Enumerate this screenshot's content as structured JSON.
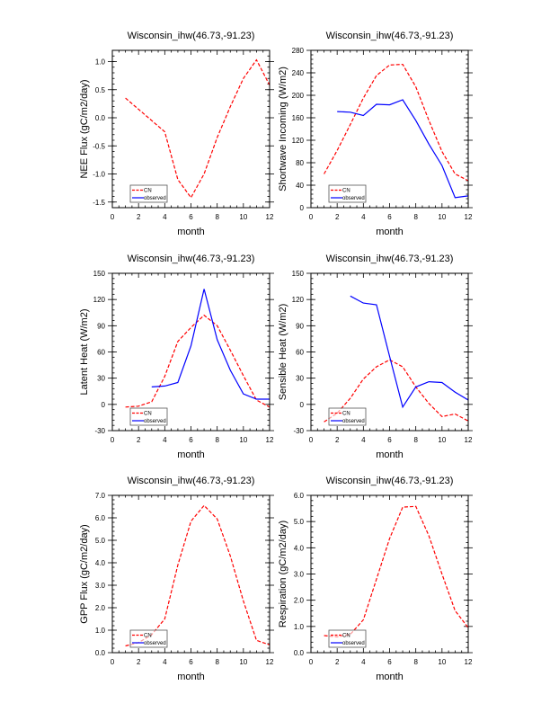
{
  "colors": {
    "model": "#ff0000",
    "observed": "#0000ff",
    "frame": "#000000"
  },
  "chart_data": [
    {
      "type": "line",
      "title": "Wisconsin_ihw(46.73,-91.23)",
      "xlabel": "month",
      "ylabel": "NEE Flux (gC/m2/day)",
      "xlim": [
        0,
        12
      ],
      "ylim": [
        -1.6,
        1.2
      ],
      "xticks": [
        "0",
        "2",
        "4",
        "6",
        "8",
        "10",
        "12"
      ],
      "yticks": [
        {
          "v": -1.5,
          "label": "-1.5"
        },
        {
          "v": -1.0,
          "label": "-1.0"
        },
        {
          "v": -0.5,
          "label": "-0.5"
        },
        {
          "v": 0.0,
          "label": "0.0"
        },
        {
          "v": 0.5,
          "label": "0.5"
        },
        {
          "v": 1.0,
          "label": "1.0"
        }
      ],
      "legend": {
        "position": "bottom-left",
        "entries": [
          "CN",
          "observed"
        ]
      },
      "series": [
        {
          "name": "CN",
          "x": [
            1,
            2,
            3,
            4,
            5,
            6,
            7,
            8,
            9,
            10,
            11,
            12
          ],
          "values": [
            0.35,
            0.15,
            -0.05,
            -0.25,
            -1.1,
            -1.42,
            -1.0,
            -0.35,
            0.2,
            0.7,
            1.03,
            0.58
          ]
        },
        {
          "name": "observed",
          "x": [],
          "values": []
        }
      ]
    },
    {
      "type": "line",
      "title": "Wisconsin_ihw(46.73,-91.23)",
      "xlabel": "month",
      "ylabel": "Shortwave Incoming (W/m2)",
      "xlim": [
        0,
        12
      ],
      "ylim": [
        0,
        280
      ],
      "xticks": [
        "0",
        "2",
        "4",
        "6",
        "8",
        "10",
        "12"
      ],
      "yticks": [
        {
          "v": 0,
          "label": "0"
        },
        {
          "v": 40,
          "label": "40"
        },
        {
          "v": 80,
          "label": "80"
        },
        {
          "v": 120,
          "label": "120"
        },
        {
          "v": 160,
          "label": "160"
        },
        {
          "v": 200,
          "label": "200"
        },
        {
          "v": 240,
          "label": "240"
        },
        {
          "v": 280,
          "label": "280"
        }
      ],
      "legend": {
        "position": "bottom-left",
        "entries": [
          "CN",
          "observed"
        ]
      },
      "series": [
        {
          "name": "CN",
          "x": [
            1,
            2,
            3,
            4,
            5,
            6,
            7,
            8,
            9,
            10,
            11,
            12
          ],
          "values": [
            60,
            102,
            148,
            195,
            235,
            254,
            255,
            215,
            155,
            100,
            60,
            48
          ]
        },
        {
          "name": "observed",
          "x": [
            2,
            3,
            4,
            5,
            6,
            7,
            8,
            9,
            10,
            11,
            12
          ],
          "values": [
            171,
            170,
            164,
            184,
            183,
            192,
            155,
            113,
            75,
            18,
            21
          ]
        }
      ]
    },
    {
      "type": "line",
      "title": "Wisconsin_ihw(46.73,-91.23)",
      "xlabel": "month",
      "ylabel": "Latent Heat (W/m2)",
      "xlim": [
        0,
        12
      ],
      "ylim": [
        -30,
        150
      ],
      "xticks": [
        "0",
        "2",
        "4",
        "6",
        "8",
        "10",
        "12"
      ],
      "yticks": [
        {
          "v": -30,
          "label": "-30"
        },
        {
          "v": 0,
          "label": "0"
        },
        {
          "v": 30,
          "label": "30"
        },
        {
          "v": 60,
          "label": "60"
        },
        {
          "v": 90,
          "label": "90"
        },
        {
          "v": 120,
          "label": "120"
        },
        {
          "v": 150,
          "label": "150"
        }
      ],
      "legend": {
        "position": "bottom-left",
        "entries": [
          "CN",
          "observed"
        ]
      },
      "series": [
        {
          "name": "CN",
          "x": [
            1,
            2,
            3,
            4,
            5,
            6,
            7,
            8,
            9,
            10,
            11,
            12
          ],
          "values": [
            -3,
            -2,
            3,
            32,
            72,
            88,
            102,
            90,
            62,
            33,
            5,
            -3
          ]
        },
        {
          "name": "observed",
          "x": [
            3,
            4,
            5,
            6,
            7,
            8,
            9,
            10,
            11,
            12
          ],
          "values": [
            20,
            21,
            25,
            67,
            132,
            74,
            39,
            12,
            6,
            6
          ]
        }
      ]
    },
    {
      "type": "line",
      "title": "Wisconsin_ihw(46.73,-91.23)",
      "xlabel": "month",
      "ylabel": "Sensible Heat (W/m2)",
      "xlim": [
        0,
        12
      ],
      "ylim": [
        -30,
        150
      ],
      "xticks": [
        "0",
        "2",
        "4",
        "6",
        "8",
        "10",
        "12"
      ],
      "yticks": [
        {
          "v": -30,
          "label": "-30"
        },
        {
          "v": 0,
          "label": "0"
        },
        {
          "v": 30,
          "label": "30"
        },
        {
          "v": 60,
          "label": "60"
        },
        {
          "v": 90,
          "label": "90"
        },
        {
          "v": 120,
          "label": "120"
        },
        {
          "v": 150,
          "label": "150"
        }
      ],
      "legend": {
        "position": "bottom-left",
        "entries": [
          "CN",
          "observed"
        ]
      },
      "series": [
        {
          "name": "CN",
          "x": [
            1,
            2,
            3,
            4,
            5,
            6,
            7,
            8,
            9,
            10,
            11,
            12
          ],
          "values": [
            -20,
            -10,
            7,
            29,
            43,
            51,
            43,
            20,
            1,
            -14,
            -11,
            -19
          ]
        },
        {
          "name": "observed",
          "x": [
            3,
            4,
            5,
            6,
            7,
            8,
            9,
            10,
            11,
            12
          ],
          "values": [
            124,
            116,
            114,
            55,
            -3,
            20,
            26,
            25,
            14,
            5
          ]
        }
      ]
    },
    {
      "type": "line",
      "title": "Wisconsin_ihw(46.73,-91.23)",
      "xlabel": "month",
      "ylabel": "GPP Flux (gC/m2/day)",
      "xlim": [
        0,
        12
      ],
      "ylim": [
        0,
        7
      ],
      "xticks": [
        "0",
        "2",
        "4",
        "6",
        "8",
        "10",
        "12"
      ],
      "yticks": [
        {
          "v": 0,
          "label": "0.0"
        },
        {
          "v": 1,
          "label": "1.0"
        },
        {
          "v": 2,
          "label": "2.0"
        },
        {
          "v": 3,
          "label": "3.0"
        },
        {
          "v": 4,
          "label": "4.0"
        },
        {
          "v": 5,
          "label": "5.0"
        },
        {
          "v": 6,
          "label": "6.0"
        },
        {
          "v": 7,
          "label": "7.0"
        }
      ],
      "legend": {
        "position": "bottom-left",
        "entries": [
          "CN",
          "observed"
        ]
      },
      "series": [
        {
          "name": "CN",
          "x": [
            1,
            2,
            3,
            4,
            5,
            6,
            7,
            8,
            9,
            10,
            11,
            12
          ],
          "values": [
            0.3,
            0.45,
            0.8,
            1.5,
            3.9,
            5.85,
            6.55,
            5.95,
            4.3,
            2.3,
            0.55,
            0.35
          ]
        },
        {
          "name": "observed",
          "x": [],
          "values": []
        }
      ]
    },
    {
      "type": "line",
      "title": "Wisconsin_ihw(46.73,-91.23)",
      "xlabel": "month",
      "ylabel": "Respiration (gC/m2/day)",
      "xlim": [
        0,
        12
      ],
      "ylim": [
        0,
        6
      ],
      "xticks": [
        "0",
        "2",
        "4",
        "6",
        "8",
        "10",
        "12"
      ],
      "yticks": [
        {
          "v": 0,
          "label": "0.0"
        },
        {
          "v": 1,
          "label": "1.0"
        },
        {
          "v": 2,
          "label": "2.0"
        },
        {
          "v": 3,
          "label": "3.0"
        },
        {
          "v": 4,
          "label": "4.0"
        },
        {
          "v": 5,
          "label": "5.0"
        },
        {
          "v": 6,
          "label": "6.0"
        }
      ],
      "legend": {
        "position": "bottom-left",
        "entries": [
          "CN",
          "observed"
        ]
      },
      "series": [
        {
          "name": "CN",
          "x": [
            1,
            2,
            3,
            4,
            5,
            6,
            7,
            8,
            9,
            10,
            11,
            12
          ],
          "values": [
            0.65,
            0.6,
            0.7,
            1.25,
            2.8,
            4.35,
            5.55,
            5.58,
            4.45,
            3.0,
            1.6,
            0.95
          ]
        },
        {
          "name": "observed",
          "x": [],
          "values": []
        }
      ]
    }
  ]
}
